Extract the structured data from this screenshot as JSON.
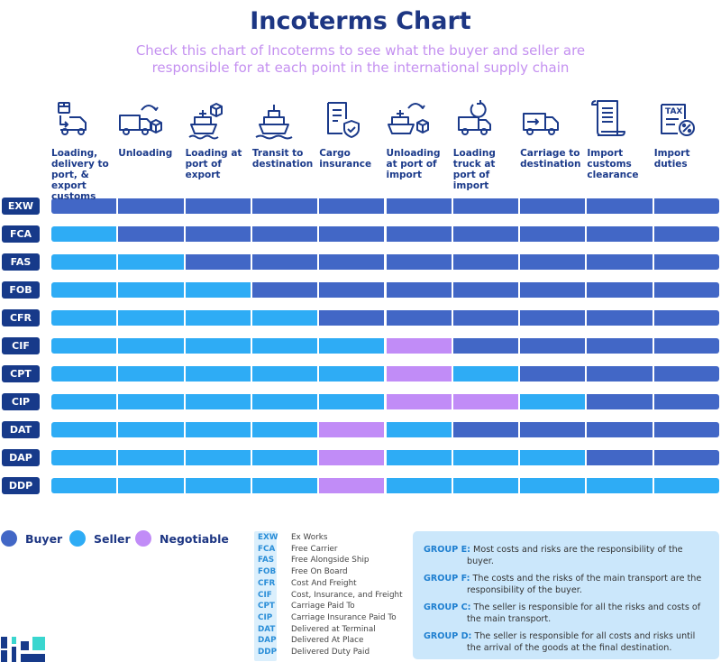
{
  "title": "Incoterms Chart",
  "subtitle": "Check this chart of Incoterms to see what the buyer and seller are responsible for at each point in the international supply chain",
  "colors": {
    "buyer": "#4267c6",
    "seller": "#2eacf5",
    "negotiable": "#c18cf7",
    "navy": "#173a8a"
  },
  "chart_data": {
    "type": "table",
    "columns": [
      {
        "label": "Loading, delivery to port, & export customs",
        "icon": "truck-box-icon"
      },
      {
        "label": "Unloading",
        "icon": "truck-unload-icon"
      },
      {
        "label": "Loading at port of export",
        "icon": "ship-box-icon"
      },
      {
        "label": "Transit to destination",
        "icon": "ship-icon"
      },
      {
        "label": "Cargo insurance",
        "icon": "document-shield-icon"
      },
      {
        "label": "Unloading at port of import",
        "icon": "ship-unload-icon"
      },
      {
        "label": "Loading truck at port of import",
        "icon": "truck-reload-icon"
      },
      {
        "label": "Carriage to destination",
        "icon": "truck-arrow-icon"
      },
      {
        "label": "Import customs clearance",
        "icon": "scroll-icon"
      },
      {
        "label": "Import duties",
        "icon": "tax-icon"
      }
    ],
    "legend": {
      "B": "Buyer",
      "S": "Seller",
      "N": "Negotiable"
    },
    "rows": [
      {
        "term": "EXW",
        "cells": [
          "B",
          "B",
          "B",
          "B",
          "B",
          "B",
          "B",
          "B",
          "B",
          "B"
        ]
      },
      {
        "term": "FCA",
        "cells": [
          "S",
          "B",
          "B",
          "B",
          "B",
          "B",
          "B",
          "B",
          "B",
          "B"
        ]
      },
      {
        "term": "FAS",
        "cells": [
          "S",
          "S",
          "B",
          "B",
          "B",
          "B",
          "B",
          "B",
          "B",
          "B"
        ]
      },
      {
        "term": "FOB",
        "cells": [
          "S",
          "S",
          "S",
          "B",
          "B",
          "B",
          "B",
          "B",
          "B",
          "B"
        ]
      },
      {
        "term": "CFR",
        "cells": [
          "S",
          "S",
          "S",
          "S",
          "B",
          "B",
          "B",
          "B",
          "B",
          "B"
        ]
      },
      {
        "term": "CIF",
        "cells": [
          "S",
          "S",
          "S",
          "S",
          "S",
          "N",
          "B",
          "B",
          "B",
          "B"
        ]
      },
      {
        "term": "CPT",
        "cells": [
          "S",
          "S",
          "S",
          "S",
          "S",
          "N",
          "S",
          "B",
          "B",
          "B"
        ]
      },
      {
        "term": "CIP",
        "cells": [
          "S",
          "S",
          "S",
          "S",
          "S",
          "N",
          "N",
          "S",
          "B",
          "B"
        ]
      },
      {
        "term": "DAT",
        "cells": [
          "S",
          "S",
          "S",
          "S",
          "N",
          "S",
          "B",
          "B",
          "B",
          "B"
        ]
      },
      {
        "term": "DAP",
        "cells": [
          "S",
          "S",
          "S",
          "S",
          "N",
          "S",
          "S",
          "S",
          "B",
          "B"
        ]
      },
      {
        "term": "DDP",
        "cells": [
          "S",
          "S",
          "S",
          "S",
          "N",
          "S",
          "S",
          "S",
          "S",
          "S"
        ]
      }
    ]
  },
  "abbreviations": [
    {
      "abbr": "EXW",
      "full": "Ex Works"
    },
    {
      "abbr": "FCA",
      "full": "Free Carrier"
    },
    {
      "abbr": "FAS",
      "full": "Free Alongside Ship"
    },
    {
      "abbr": "FOB",
      "full": "Free On Board"
    },
    {
      "abbr": "CFR",
      "full": "Cost And Freight"
    },
    {
      "abbr": "CIF",
      "full": "Cost, Insurance, and Freight"
    },
    {
      "abbr": "CPT",
      "full": "Carriage Paid To"
    },
    {
      "abbr": "CIP",
      "full": "Carriage Insurance Paid To"
    },
    {
      "abbr": "DAT",
      "full": "Delivered at Terminal"
    },
    {
      "abbr": "DAP",
      "full": "Delivered At Place"
    },
    {
      "abbr": "DDP",
      "full": "Delivered Duty Paid"
    }
  ],
  "groups": [
    {
      "name": "GROUP E:",
      "text": "Most costs and risks are the responsibility of the buyer."
    },
    {
      "name": "GROUP F:",
      "text": "The costs and the risks of the main transport are the responsibility of the buyer."
    },
    {
      "name": "GROUP C:",
      "text": "The seller is responsible for all the risks and costs of the main transport."
    },
    {
      "name": "GROUP D:",
      "text": "The seller is responsible for all costs and risks until the arrival of the goods at the final destination."
    }
  ]
}
